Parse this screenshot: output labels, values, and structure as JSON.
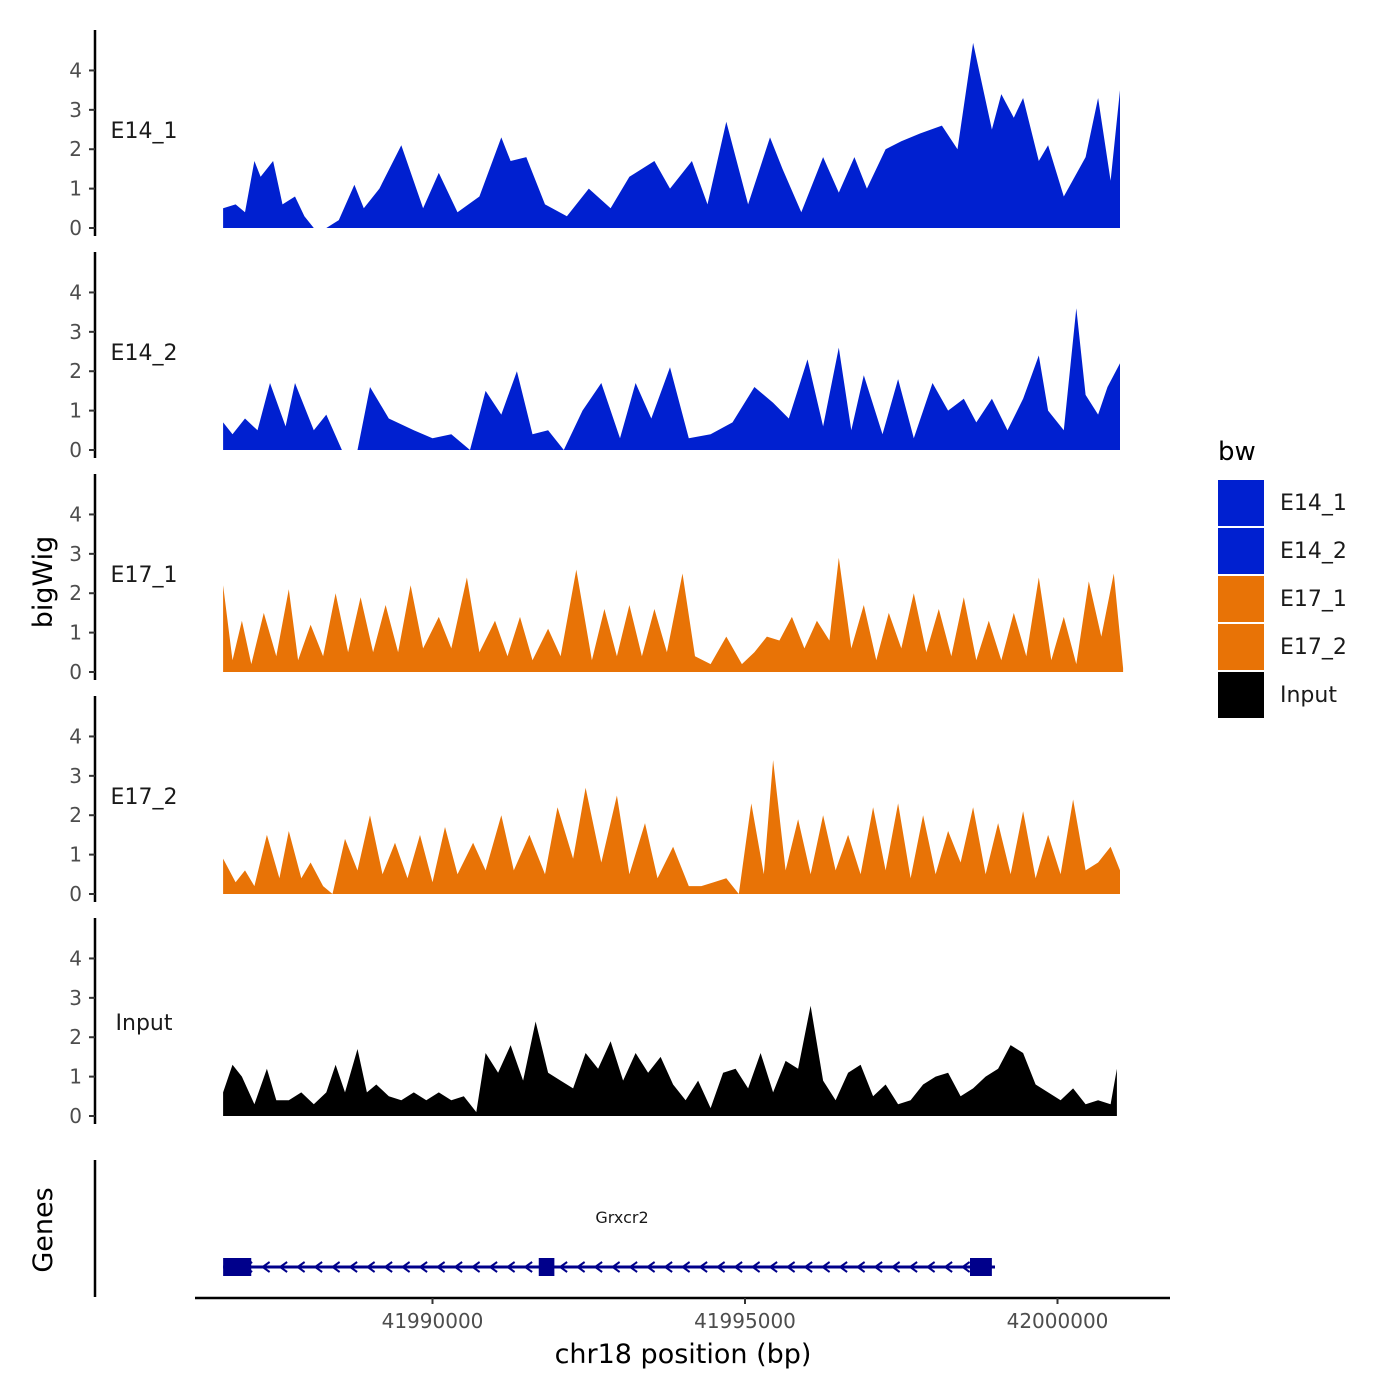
{
  "chart_data": {
    "type": "area",
    "ylabel": "bigWig",
    "xlabel": "chr18 position (bp)",
    "xlim": [
      41986200,
      42001800
    ],
    "ylim": [
      0,
      4.9
    ],
    "yticks": [
      "0",
      "1",
      "2",
      "3",
      "4"
    ],
    "xticks": [
      {
        "value": 41990000,
        "label": "41990000"
      },
      {
        "value": 41995000,
        "label": "41995000"
      },
      {
        "value": 42000000,
        "label": "42000000"
      }
    ],
    "legend": {
      "title": "bw",
      "position": "right",
      "entries": [
        {
          "label": "E14_1",
          "color": "#0020D0"
        },
        {
          "label": "E14_2",
          "color": "#0020D0"
        },
        {
          "label": "E17_1",
          "color": "#E87306"
        },
        {
          "label": "E17_2",
          "color": "#E87306"
        },
        {
          "label": "Input",
          "color": "#000000"
        }
      ]
    },
    "tracks": [
      {
        "name": "E14_1",
        "color": "#0020D0",
        "x": [
          41986650,
          41986850,
          41987000,
          41987150,
          41987250,
          41987450,
          41987600,
          41987800,
          41987950,
          41988100,
          41988300,
          41988500,
          41988750,
          41988900,
          41989150,
          41989500,
          41989850,
          41990100,
          41990400,
          41990750,
          41991100,
          41991250,
          41991500,
          41991800,
          41992150,
          41992500,
          41992850,
          41993150,
          41993550,
          41993800,
          41994150,
          41994400,
          41994700,
          41995050,
          41995400,
          41995600,
          41995900,
          41996250,
          41996500,
          41996750,
          41996950,
          41997250,
          41997500,
          41997800,
          41998150,
          41998400,
          41998650,
          41998950,
          41999100,
          41999300,
          41999450,
          41999700,
          41999850,
          42000100,
          42000450,
          42000650,
          42000850,
          42001000
        ],
        "y": [
          0.5,
          0.6,
          0.4,
          1.7,
          1.3,
          1.7,
          0.6,
          0.8,
          0.3,
          0,
          0,
          0.2,
          1.1,
          0.5,
          1.0,
          2.1,
          0.5,
          1.4,
          0.4,
          0.8,
          2.3,
          1.7,
          1.8,
          0.6,
          0.3,
          1.0,
          0.5,
          1.3,
          1.7,
          1.0,
          1.7,
          0.6,
          2.7,
          0.6,
          2.3,
          1.5,
          0.4,
          1.8,
          0.9,
          1.8,
          1.0,
          2.0,
          2.2,
          2.4,
          2.6,
          2.0,
          4.7,
          2.5,
          3.4,
          2.8,
          3.3,
          1.7,
          2.1,
          0.8,
          1.8,
          3.3,
          1.2,
          3.5
        ]
      },
      {
        "name": "E14_2",
        "color": "#0020D0",
        "x": [
          41986650,
          41986800,
          41987000,
          41987200,
          41987400,
          41987650,
          41987800,
          41988100,
          41988300,
          41988550,
          41988800,
          41989000,
          41989300,
          41989700,
          41990000,
          41990300,
          41990600,
          41990850,
          41991100,
          41991350,
          41991600,
          41991850,
          41992100,
          41992400,
          41992700,
          41993000,
          41993250,
          41993500,
          41993800,
          41994100,
          41994450,
          41994800,
          41995150,
          41995450,
          41995700,
          41996000,
          41996250,
          41996500,
          41996700,
          41996900,
          41997200,
          41997450,
          41997700,
          41998000,
          41998250,
          41998500,
          41998700,
          41998950,
          41999200,
          41999450,
          41999700,
          41999850,
          42000100,
          42000300,
          42000450,
          42000650,
          42000800,
          42001000
        ],
        "y": [
          0.7,
          0.4,
          0.8,
          0.5,
          1.7,
          0.6,
          1.7,
          0.5,
          0.9,
          0,
          0,
          1.6,
          0.8,
          0.5,
          0.3,
          0.4,
          0,
          1.5,
          0.9,
          2.0,
          0.4,
          0.5,
          0,
          1.0,
          1.7,
          0.3,
          1.7,
          0.8,
          2.1,
          0.3,
          0.4,
          0.7,
          1.6,
          1.2,
          0.8,
          2.3,
          0.6,
          2.6,
          0.5,
          1.9,
          0.4,
          1.8,
          0.3,
          1.7,
          1.0,
          1.3,
          0.7,
          1.3,
          0.5,
          1.3,
          2.4,
          1.0,
          0.5,
          3.6,
          1.4,
          0.9,
          1.6,
          2.2
        ]
      },
      {
        "name": "E17_1",
        "color": "#E87306",
        "x": [
          41986650,
          41986800,
          41986950,
          41987100,
          41987300,
          41987500,
          41987700,
          41987850,
          41988050,
          41988250,
          41988450,
          41988650,
          41988850,
          41989050,
          41989250,
          41989450,
          41989650,
          41989850,
          41990100,
          41990300,
          41990550,
          41990750,
          41991000,
          41991200,
          41991400,
          41991600,
          41991850,
          41992050,
          41992300,
          41992550,
          41992750,
          41992950,
          41993150,
          41993350,
          41993550,
          41993750,
          41994000,
          41994200,
          41994450,
          41994700,
          41994950,
          41995150,
          41995350,
          41995550,
          41995750,
          41995950,
          41996150,
          41996350,
          41996500,
          41996700,
          41996900,
          41997100,
          41997300,
          41997500,
          41997700,
          41997900,
          41998100,
          41998300,
          41998500,
          41998700,
          41998900,
          41999100,
          41999300,
          41999500,
          41999700,
          41999900,
          42000100,
          42000300,
          42000500,
          42000700,
          42000900,
          42001050
        ],
        "y": [
          2.2,
          0.3,
          1.3,
          0.2,
          1.5,
          0.4,
          2.1,
          0.3,
          1.2,
          0.4,
          2.0,
          0.5,
          1.9,
          0.5,
          1.7,
          0.5,
          2.2,
          0.6,
          1.4,
          0.6,
          2.4,
          0.5,
          1.3,
          0.4,
          1.4,
          0.3,
          1.1,
          0.4,
          2.6,
          0.3,
          1.6,
          0.4,
          1.7,
          0.4,
          1.6,
          0.5,
          2.5,
          0.4,
          0.2,
          0.9,
          0.2,
          0.5,
          0.9,
          0.8,
          1.4,
          0.6,
          1.3,
          0.8,
          2.9,
          0.6,
          1.7,
          0.3,
          1.5,
          0.6,
          2.0,
          0.5,
          1.6,
          0.4,
          1.9,
          0.3,
          1.3,
          0.3,
          1.5,
          0.4,
          2.4,
          0.3,
          1.4,
          0.2,
          2.3,
          0.9,
          2.5,
          0.1
        ],
        "y_scale_note": "values read relative to 0-4 axis"
      },
      {
        "name": "E17_2",
        "color": "#E87306",
        "x": [
          41986650,
          41986850,
          41987000,
          41987150,
          41987350,
          41987550,
          41987700,
          41987900,
          41988050,
          41988250,
          41988400,
          41988600,
          41988800,
          41989000,
          41989200,
          41989400,
          41989600,
          41989800,
          41990000,
          41990200,
          41990400,
          41990650,
          41990850,
          41991100,
          41991300,
          41991550,
          41991800,
          41992000,
          41992250,
          41992450,
          41992700,
          41992950,
          41993150,
          41993400,
          41993600,
          41993850,
          41994100,
          41994300,
          41994500,
          41994700,
          41994900,
          41995100,
          41995300,
          41995450,
          41995650,
          41995850,
          41996050,
          41996250,
          41996450,
          41996650,
          41996850,
          41997050,
          41997250,
          41997450,
          41997650,
          41997850,
          41998050,
          41998250,
          41998450,
          41998650,
          41998850,
          41999050,
          41999250,
          41999450,
          41999650,
          41999850,
          42000050,
          42000250,
          42000450,
          42000650,
          42000850,
          42001000
        ],
        "y": [
          0.9,
          0.3,
          0.6,
          0.2,
          1.5,
          0.4,
          1.6,
          0.4,
          0.8,
          0.2,
          0,
          1.4,
          0.6,
          2.0,
          0.5,
          1.3,
          0.4,
          1.5,
          0.3,
          1.7,
          0.5,
          1.3,
          0.6,
          2.0,
          0.6,
          1.5,
          0.5,
          2.2,
          0.9,
          2.7,
          0.8,
          2.5,
          0.5,
          1.8,
          0.4,
          1.2,
          0.2,
          0.2,
          0.3,
          0.4,
          0,
          2.3,
          0.5,
          3.4,
          0.6,
          1.9,
          0.5,
          2.0,
          0.6,
          1.5,
          0.5,
          2.2,
          0.6,
          2.3,
          0.4,
          2.0,
          0.5,
          1.6,
          0.8,
          2.2,
          0.5,
          1.8,
          0.5,
          2.1,
          0.4,
          1.5,
          0.5,
          2.4,
          0.6,
          0.8,
          1.2,
          0.6
        ]
      },
      {
        "name": "Input",
        "color": "#000000",
        "x": [
          41986650,
          41986800,
          41986950,
          41987150,
          41987350,
          41987500,
          41987700,
          41987900,
          41988100,
          41988300,
          41988450,
          41988600,
          41988800,
          41988950,
          41989100,
          41989300,
          41989500,
          41989700,
          41989900,
          41990100,
          41990300,
          41990500,
          41990700,
          41990850,
          41991050,
          41991250,
          41991450,
          41991650,
          41991850,
          41992050,
          41992250,
          41992450,
          41992650,
          41992850,
          41993050,
          41993250,
          41993450,
          41993650,
          41993850,
          41994050,
          41994250,
          41994450,
          41994650,
          41994850,
          41995050,
          41995250,
          41995450,
          41995650,
          41995850,
          41996050,
          41996250,
          41996450,
          41996650,
          41996850,
          41997050,
          41997250,
          41997450,
          41997650,
          41997850,
          41998050,
          41998250,
          41998450,
          41998650,
          41998850,
          41999050,
          41999250,
          41999450,
          41999650,
          41999850,
          42000050,
          42000250,
          42000450,
          42000650,
          42000850,
          42000950
        ],
        "y": [
          0.6,
          1.3,
          1.0,
          0.3,
          1.2,
          0.4,
          0.4,
          0.6,
          0.3,
          0.6,
          1.3,
          0.6,
          1.7,
          0.6,
          0.8,
          0.5,
          0.4,
          0.6,
          0.4,
          0.6,
          0.4,
          0.5,
          0.1,
          1.6,
          1.1,
          1.8,
          0.9,
          2.4,
          1.1,
          0.9,
          0.7,
          1.6,
          1.2,
          1.9,
          0.9,
          1.6,
          1.1,
          1.5,
          0.8,
          0.4,
          0.9,
          0.2,
          1.1,
          1.2,
          0.7,
          1.6,
          0.6,
          1.4,
          1.2,
          2.8,
          0.9,
          0.4,
          1.1,
          1.3,
          0.5,
          0.8,
          0.3,
          0.4,
          0.8,
          1.0,
          1.1,
          0.5,
          0.7,
          1.0,
          1.2,
          1.8,
          1.6,
          0.8,
          0.6,
          0.4,
          0.7,
          0.3,
          0.4,
          0.3,
          1.2
        ]
      }
    ],
    "genes": {
      "label": "Genes",
      "color": "#00008B",
      "name": "Grxcr2",
      "strand": "-",
      "start": 41986650,
      "end": 41999000,
      "exons": [
        {
          "start": 41986650,
          "end": 41987100
        },
        {
          "start": 41991700,
          "end": 41991950
        },
        {
          "start": 41998600,
          "end": 41998950
        }
      ]
    }
  }
}
